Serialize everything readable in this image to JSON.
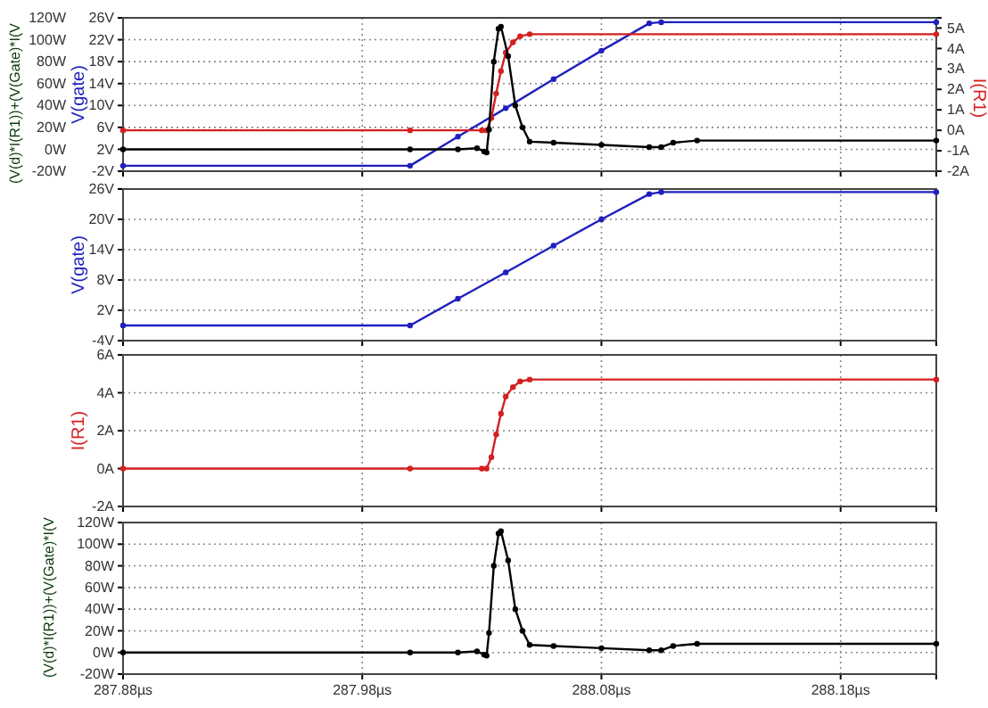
{
  "chart_data": [
    {
      "type": "line",
      "ylabel": "(V(d)*I(R1))+(V(Gate)*I(V",
      "y2label": "V(gate)",
      "y3label": "I(R1)",
      "xlim": [
        287.88,
        288.22
      ],
      "xticks": [
        287.88,
        287.98,
        288.08,
        288.18
      ],
      "ylim": [
        -20,
        120
      ],
      "yticks": [
        {
          "value": -20,
          "label": "-20W"
        },
        {
          "value": 0,
          "label": "0W"
        },
        {
          "value": 20,
          "label": "20W"
        },
        {
          "value": 40,
          "label": "40W"
        },
        {
          "value": 60,
          "label": "60W"
        },
        {
          "value": 80,
          "label": "80W"
        },
        {
          "value": 100,
          "label": "100W"
        },
        {
          "value": 120,
          "label": "120W"
        }
      ],
      "y2lim": [
        -2,
        26
      ],
      "y2ticks": [
        {
          "value": -2,
          "label": "-2V"
        },
        {
          "value": 2,
          "label": "2V"
        },
        {
          "value": 6,
          "label": "6V"
        },
        {
          "value": 10,
          "label": "10V"
        },
        {
          "value": 14,
          "label": "14V"
        },
        {
          "value": 18,
          "label": "18V"
        },
        {
          "value": 22,
          "label": "22V"
        },
        {
          "value": 26,
          "label": "26V"
        }
      ],
      "y3lim": [
        -2,
        5.5
      ],
      "y3ticks": [
        {
          "value": -2,
          "label": "-2A"
        },
        {
          "value": -1,
          "label": "-1A"
        },
        {
          "value": 0,
          "label": "0A"
        },
        {
          "value": 1,
          "label": "1A"
        },
        {
          "value": 2,
          "label": "2A"
        },
        {
          "value": 3,
          "label": "3A"
        },
        {
          "value": 4,
          "label": "4A"
        },
        {
          "value": 5,
          "label": "5A"
        }
      ],
      "grid": true,
      "marker": "circle",
      "tick_labels": "y",
      "series": [
        {
          "color": "#1f1fbf",
          "axis": "y2",
          "x": [
            287.88,
            288.0,
            288.02,
            288.04,
            288.06,
            288.08,
            288.1,
            288.105,
            288.22
          ],
          "values": [
            -1,
            -1,
            4.3,
            9.5,
            14.8,
            20,
            25,
            25.2,
            25.2
          ]
        },
        {
          "color": "#d42020",
          "axis": "y3",
          "x": [
            287.88,
            288.0,
            288.03,
            288.032,
            288.034,
            288.036,
            288.038,
            288.04,
            288.043,
            288.046,
            288.05,
            288.22
          ],
          "values": [
            0,
            0,
            0,
            0,
            0.6,
            1.8,
            2.9,
            3.8,
            4.3,
            4.6,
            4.7,
            4.7
          ]
        },
        {
          "color": "#000000",
          "x": [
            287.88,
            288.0,
            288.02,
            288.028,
            288.031,
            288.032,
            288.033,
            288.035,
            288.037,
            288.038,
            288.041,
            288.044,
            288.047,
            288.05,
            288.06,
            288.08,
            288.1,
            288.105,
            288.11,
            288.12,
            288.22
          ],
          "values": [
            0,
            0,
            0,
            1,
            -2,
            -3,
            18,
            80,
            110,
            112,
            85,
            40,
            20,
            7,
            6,
            4,
            2,
            2,
            6,
            8,
            8
          ]
        }
      ]
    },
    {
      "type": "line",
      "ylabel": "V(gate)",
      "xlim": [
        287.88,
        288.22
      ],
      "xticks": [
        287.88,
        287.98,
        288.08,
        288.18
      ],
      "ylim": [
        -4,
        26
      ],
      "yticks": [
        {
          "value": -4,
          "label": "-4V"
        },
        {
          "value": 2,
          "label": "2V"
        },
        {
          "value": 8,
          "label": "8V"
        },
        {
          "value": 14,
          "label": "14V"
        },
        {
          "value": 20,
          "label": "20V"
        },
        {
          "value": 26,
          "label": "26V"
        }
      ],
      "grid": true,
      "marker": "circle",
      "tick_labels": "y",
      "series": [
        {
          "color": "#1f1fbf",
          "x": [
            287.88,
            288.0,
            288.02,
            288.04,
            288.06,
            288.08,
            288.1,
            288.105,
            288.22
          ],
          "values": [
            -1,
            -1,
            4.3,
            9.5,
            14.8,
            20,
            25,
            25.4,
            25.4
          ]
        }
      ]
    },
    {
      "type": "line",
      "ylabel": "I(R1)",
      "xlim": [
        287.88,
        288.22
      ],
      "xticks": [
        287.88,
        287.98,
        288.08,
        288.18
      ],
      "ylim": [
        -2,
        6
      ],
      "yticks": [
        {
          "value": -2,
          "label": "-2A"
        },
        {
          "value": 0,
          "label": "0A"
        },
        {
          "value": 2,
          "label": "2A"
        },
        {
          "value": 4,
          "label": "4A"
        },
        {
          "value": 6,
          "label": "6A"
        }
      ],
      "grid": true,
      "marker": "circle",
      "tick_labels": "y",
      "series": [
        {
          "color": "#d42020",
          "x": [
            287.88,
            288.0,
            288.03,
            288.032,
            288.034,
            288.036,
            288.038,
            288.04,
            288.043,
            288.046,
            288.05,
            288.22
          ],
          "values": [
            0,
            0,
            0,
            0,
            0.6,
            1.8,
            2.9,
            3.8,
            4.3,
            4.6,
            4.7,
            4.7
          ]
        }
      ]
    },
    {
      "type": "line",
      "ylabel": "(V(d)*I(R1))+(V(Gate)*I(V",
      "xlim": [
        287.88,
        288.22
      ],
      "xticks": [
        {
          "value": 287.88,
          "label": "287.88µs"
        },
        {
          "value": 287.98,
          "label": "287.98µs"
        },
        {
          "value": 288.08,
          "label": "288.08µs"
        },
        {
          "value": 288.18,
          "label": "288.18µs"
        }
      ],
      "ylim": [
        -20,
        120
      ],
      "yticks": [
        {
          "value": -20,
          "label": "-20W"
        },
        {
          "value": 0,
          "label": "0W"
        },
        {
          "value": 20,
          "label": "20W"
        },
        {
          "value": 40,
          "label": "40W"
        },
        {
          "value": 60,
          "label": "60W"
        },
        {
          "value": 80,
          "label": "80W"
        },
        {
          "value": 100,
          "label": "100W"
        },
        {
          "value": 120,
          "label": "120W"
        }
      ],
      "grid": true,
      "marker": "circle",
      "series": [
        {
          "color": "#000000",
          "x": [
            287.88,
            288.0,
            288.02,
            288.028,
            288.031,
            288.032,
            288.033,
            288.035,
            288.037,
            288.038,
            288.041,
            288.044,
            288.047,
            288.05,
            288.06,
            288.08,
            288.1,
            288.105,
            288.11,
            288.12,
            288.22
          ],
          "values": [
            0,
            0,
            0,
            1,
            -2,
            -3,
            18,
            80,
            110,
            112,
            85,
            40,
            20,
            7,
            6,
            4,
            2,
            2,
            6,
            8,
            8
          ]
        }
      ]
    }
  ]
}
